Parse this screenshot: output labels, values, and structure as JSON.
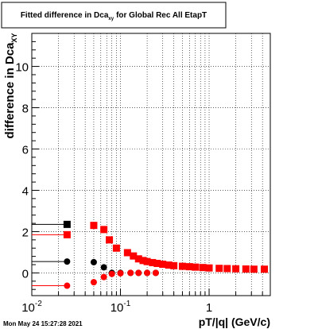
{
  "chart_data": {
    "type": "scatter",
    "title": "Fitted difference in Dca",
    "title_subscript": "xy",
    "title_suffix": "for Global Rec All EtapT",
    "ylabel": "difference in Dca",
    "ylabel_subscript": "XY",
    "xlabel": "pT/|q| (GeV/c)",
    "x_scale": "log",
    "xlim": [
      0.01,
      4.9
    ],
    "ylim": [
      -1.1,
      11.6
    ],
    "x_ticks": [
      {
        "value": 0.01,
        "base": "10",
        "exp": "-2"
      },
      {
        "value": 0.1,
        "base": "10",
        "exp": "-1"
      },
      {
        "value": 1,
        "base": "1",
        "exp": ""
      }
    ],
    "y_ticks": [
      "0",
      "2",
      "4",
      "6",
      "8",
      "10"
    ],
    "grid": true,
    "footer": "Mon May 24 15:27:28 2021",
    "colors": {
      "black": "#000000",
      "red": "#ff0000"
    },
    "series": [
      {
        "marker": "square",
        "color": "#000000",
        "points": [
          [
            0.025,
            2.35
          ]
        ]
      },
      {
        "marker": "circle",
        "color": "#000000",
        "points": [
          [
            0.025,
            0.55
          ],
          [
            0.05,
            0.52
          ],
          [
            0.065,
            0.27
          ],
          [
            0.08,
            0.0
          ],
          [
            0.1,
            0.0
          ],
          [
            0.13,
            0.0
          ],
          [
            0.16,
            0.0
          ],
          [
            0.2,
            0.0
          ],
          [
            0.25,
            0.0
          ]
        ]
      },
      {
        "marker": "square",
        "color": "#ff0000",
        "points": [
          [
            0.025,
            1.85
          ],
          [
            0.05,
            2.3
          ],
          [
            0.065,
            2.1
          ],
          [
            0.075,
            1.6
          ],
          [
            0.09,
            1.2
          ],
          [
            0.12,
            0.98
          ],
          [
            0.14,
            0.82
          ],
          [
            0.16,
            0.68
          ],
          [
            0.18,
            0.6
          ],
          [
            0.2,
            0.55
          ],
          [
            0.23,
            0.5
          ],
          [
            0.26,
            0.46
          ],
          [
            0.3,
            0.42
          ],
          [
            0.35,
            0.38
          ],
          [
            0.4,
            0.35
          ],
          [
            0.5,
            0.32
          ],
          [
            0.6,
            0.3
          ],
          [
            0.7,
            0.28
          ],
          [
            0.85,
            0.26
          ],
          [
            1.0,
            0.24
          ],
          [
            1.3,
            0.22
          ],
          [
            1.6,
            0.21
          ],
          [
            2.0,
            0.2
          ],
          [
            2.6,
            0.19
          ],
          [
            3.2,
            0.18
          ],
          [
            4.2,
            0.18
          ]
        ]
      },
      {
        "marker": "circle",
        "color": "#ff0000",
        "points": [
          [
            0.025,
            -0.62
          ],
          [
            0.05,
            -0.45
          ],
          [
            0.065,
            -0.2
          ],
          [
            0.08,
            -0.05
          ],
          [
            0.1,
            -0.02
          ],
          [
            0.13,
            0.0
          ],
          [
            0.16,
            0.0
          ],
          [
            0.2,
            0.0
          ],
          [
            0.25,
            0.0
          ]
        ]
      }
    ]
  }
}
